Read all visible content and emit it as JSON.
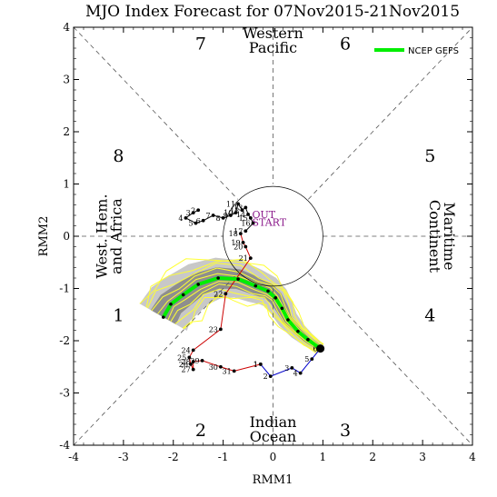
{
  "chart_data": {
    "type": "scatter",
    "title": "MJO Index Forecast for 07Nov2015-21Nov2015",
    "xlabel": "RMM1",
    "ylabel": "RMM2",
    "xlim": [
      -4,
      4
    ],
    "ylim": [
      -4,
      4
    ],
    "xticks": [
      "-4",
      "-3",
      "-2",
      "-1",
      "0",
      "1",
      "2",
      "3",
      "4"
    ],
    "yticks": [
      "-4",
      "-3",
      "-2",
      "-1",
      "0",
      "1",
      "2",
      "3",
      "4"
    ],
    "grid": false,
    "legend_placement": "top-right",
    "phase_numbers": [
      {
        "label": "7",
        "x": -1.45,
        "y": 3.7
      },
      {
        "label": "6",
        "x": 1.45,
        "y": 3.7
      },
      {
        "label": "8",
        "x": -3.1,
        "y": 1.55
      },
      {
        "label": "5",
        "x": 3.15,
        "y": 1.55
      },
      {
        "label": "1",
        "x": -3.1,
        "y": -1.5
      },
      {
        "label": "4",
        "x": 3.15,
        "y": -1.5
      },
      {
        "label": "2",
        "x": -1.45,
        "y": -3.7
      },
      {
        "label": "3",
        "x": 1.45,
        "y": -3.7
      }
    ],
    "region_labels": [
      {
        "lines": [
          "Western",
          "Pacific"
        ],
        "x": 0,
        "y": 3.72,
        "rotate": 0
      },
      {
        "lines": [
          "Indian",
          "Ocean"
        ],
        "x": 0,
        "y": -3.72,
        "rotate": 0
      },
      {
        "lines": [
          "West. Hem.",
          "and Africa"
        ],
        "x": -3.3,
        "y": 0,
        "rotate": -90
      },
      {
        "lines": [
          "Maritime",
          "Continent"
        ],
        "x": 3.4,
        "y": 0,
        "rotate": 90
      }
    ],
    "start_labels": [
      "OUT",
      "START"
    ],
    "series": [
      {
        "name": "",
        "color": "#0000cc",
        "points": [
          {
            "day": "1",
            "x": -0.25,
            "y": -2.45
          },
          {
            "day": "2",
            "x": -0.05,
            "y": -2.68
          },
          {
            "day": "3",
            "x": 0.38,
            "y": -2.52
          },
          {
            "day": "4",
            "x": 0.55,
            "y": -2.62
          },
          {
            "day": "5",
            "x": 0.78,
            "y": -2.35
          },
          {
            "day": "6",
            "x": 0.95,
            "y": -2.15
          }
        ]
      },
      {
        "name": "",
        "color": "#cc0000",
        "points": [
          {
            "day": "1",
            "x": -0.25,
            "y": -2.45
          },
          {
            "day": "31",
            "x": -0.78,
            "y": -2.58
          },
          {
            "day": "30",
            "x": -1.05,
            "y": -2.5
          },
          {
            "day": "29",
            "x": -1.42,
            "y": -2.38
          },
          {
            "day": "28",
            "x": -1.6,
            "y": -2.4
          },
          {
            "day": "27",
            "x": -1.6,
            "y": -2.55
          },
          {
            "day": "26",
            "x": -1.65,
            "y": -2.45
          },
          {
            "day": "25",
            "x": -1.68,
            "y": -2.32
          },
          {
            "day": "24",
            "x": -1.6,
            "y": -2.18
          },
          {
            "day": "23",
            "x": -1.05,
            "y": -1.78
          },
          {
            "day": "22",
            "x": -0.95,
            "y": -1.1
          },
          {
            "day": "21",
            "x": -0.45,
            "y": -0.42
          },
          {
            "day": "20",
            "x": -0.55,
            "y": -0.2
          },
          {
            "day": "19",
            "x": -0.6,
            "y": -0.12
          },
          {
            "day": "18",
            "x": -0.65,
            "y": 0.05
          }
        ]
      },
      {
        "name": "",
        "color": "#000000",
        "points": [
          {
            "day": "17",
            "x": -0.55,
            "y": 0.1
          },
          {
            "day": "16",
            "x": -0.4,
            "y": 0.25
          },
          {
            "day": "15",
            "x": -0.45,
            "y": 0.35
          },
          {
            "day": "14",
            "x": -0.5,
            "y": 0.42
          },
          {
            "day": "13",
            "x": -0.55,
            "y": 0.55
          },
          {
            "day": "12",
            "x": -0.62,
            "y": 0.5
          },
          {
            "day": "11",
            "x": -0.7,
            "y": 0.62
          },
          {
            "day": "10",
            "x": -0.75,
            "y": 0.45
          },
          {
            "day": "9",
            "x": -0.85,
            "y": 0.4
          },
          {
            "day": "8",
            "x": -1.0,
            "y": 0.35
          },
          {
            "day": "7",
            "x": -1.2,
            "y": 0.4
          },
          {
            "day": "6",
            "x": -1.4,
            "y": 0.3
          },
          {
            "day": "5",
            "x": -1.55,
            "y": 0.25
          },
          {
            "day": "4",
            "x": -1.75,
            "y": 0.35
          },
          {
            "day": "3",
            "x": -1.6,
            "y": 0.45
          },
          {
            "day": "2",
            "x": -1.5,
            "y": 0.5
          }
        ]
      },
      {
        "name": "NCEP GEFS",
        "color": "#00ee00",
        "points": [
          {
            "x": 0.95,
            "y": -2.15
          },
          {
            "x": 0.7,
            "y": -1.98
          },
          {
            "x": 0.5,
            "y": -1.82
          },
          {
            "x": 0.3,
            "y": -1.6
          },
          {
            "x": 0.18,
            "y": -1.38
          },
          {
            "x": 0.05,
            "y": -1.18
          },
          {
            "x": -0.1,
            "y": -1.05
          },
          {
            "x": -0.35,
            "y": -0.95
          },
          {
            "x": -0.7,
            "y": -0.82
          },
          {
            "x": -1.1,
            "y": -0.8
          },
          {
            "x": -1.5,
            "y": -0.92
          },
          {
            "x": -1.8,
            "y": -1.12
          },
          {
            "x": -2.05,
            "y": -1.3
          },
          {
            "x": -2.2,
            "y": -1.55
          }
        ]
      }
    ],
    "ensemble_spread_colors": [
      "#c8c8c8",
      "#8e8e8e",
      "#ffff33"
    ]
  }
}
